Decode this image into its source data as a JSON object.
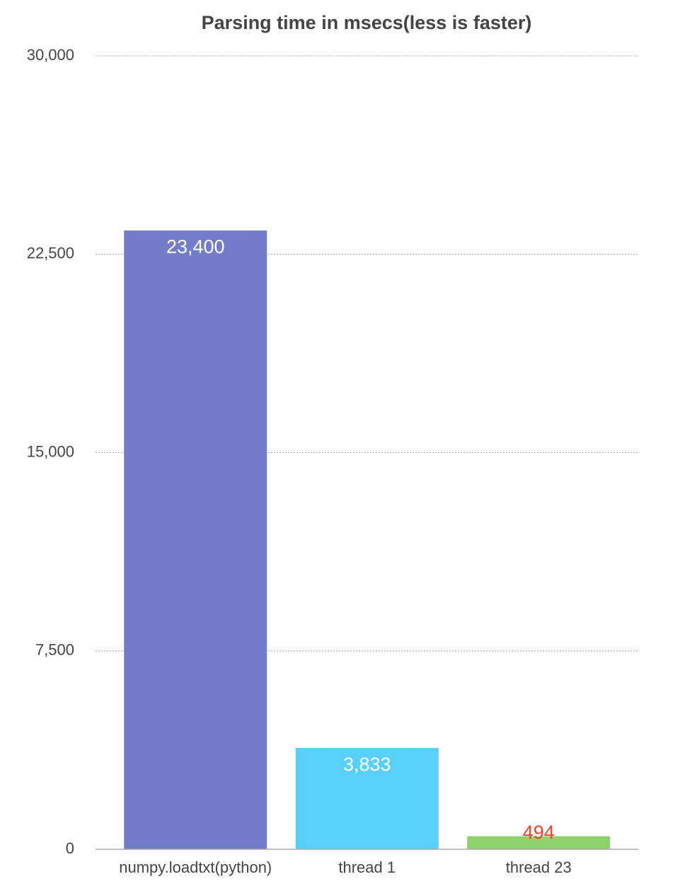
{
  "chart_data": {
    "type": "bar",
    "title": "Parsing time in msecs(less is faster)",
    "categories": [
      "numpy.loadtxt(python)",
      "thread 1",
      "thread 23"
    ],
    "values": [
      23400,
      3833,
      494
    ],
    "value_labels": [
      "23,400",
      "3,833",
      "494"
    ],
    "colors": [
      "#727cc9",
      "#58d0fb",
      "#8dd16c"
    ],
    "value_label_colors": [
      "#ffffff",
      "#ffffff",
      "#f0412b"
    ],
    "ylim": [
      0,
      30000
    ],
    "yticks": [
      0,
      {
        "value": 7500,
        "label": "7,500"
      },
      {
        "value": 15000,
        "label": "15,000"
      },
      {
        "value": 22500,
        "label": "22,500"
      },
      {
        "value": 30000,
        "label": "30,000"
      }
    ],
    "grid": true
  }
}
